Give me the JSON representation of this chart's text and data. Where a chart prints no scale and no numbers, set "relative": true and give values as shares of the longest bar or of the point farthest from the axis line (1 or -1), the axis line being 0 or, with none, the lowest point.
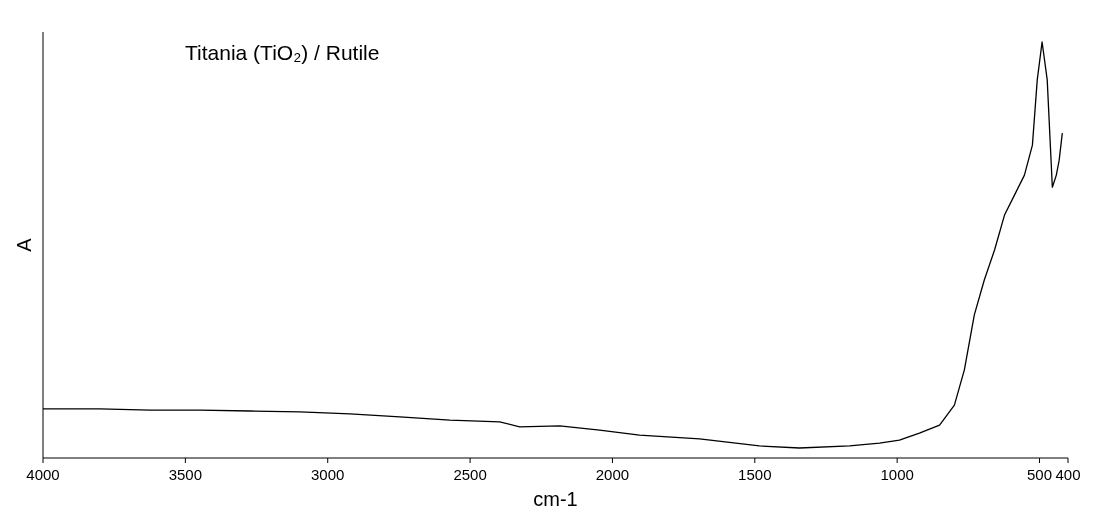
{
  "chart_data": {
    "type": "line",
    "title": "Titania (TiO₂) / Rutile",
    "xlabel": "cm-1",
    "ylabel": "A",
    "relative": true,
    "color": "#000000",
    "x": [
      4000,
      3800,
      3624,
      3449,
      3273,
      3098,
      2922,
      2747,
      2571,
      2396,
      2326,
      2185,
      2045,
      1905,
      1694,
      1484,
      1343,
      1167,
      1062,
      992,
      922,
      851,
      799,
      764,
      729,
      694,
      658,
      623,
      588,
      553,
      525,
      508,
      491,
      473,
      455,
      441,
      431,
      420
    ],
    "values": [
      0.118,
      0.118,
      0.115,
      0.115,
      0.113,
      0.111,
      0.106,
      0.099,
      0.091,
      0.087,
      0.075,
      0.077,
      0.067,
      0.055,
      0.046,
      0.029,
      0.024,
      0.029,
      0.036,
      0.043,
      0.06,
      0.079,
      0.127,
      0.212,
      0.344,
      0.428,
      0.5,
      0.584,
      0.632,
      0.68,
      0.752,
      0.909,
      1,
      0.909,
      0.651,
      0.68,
      0.716,
      0.781
    ],
    "xlim": [
      4000,
      400
    ],
    "xticks": [
      4000,
      3500,
      3000,
      2500,
      2000,
      1500,
      1000,
      500,
      400
    ],
    "grid": false,
    "legend": false,
    "line_style": "solid",
    "marker": "none"
  }
}
